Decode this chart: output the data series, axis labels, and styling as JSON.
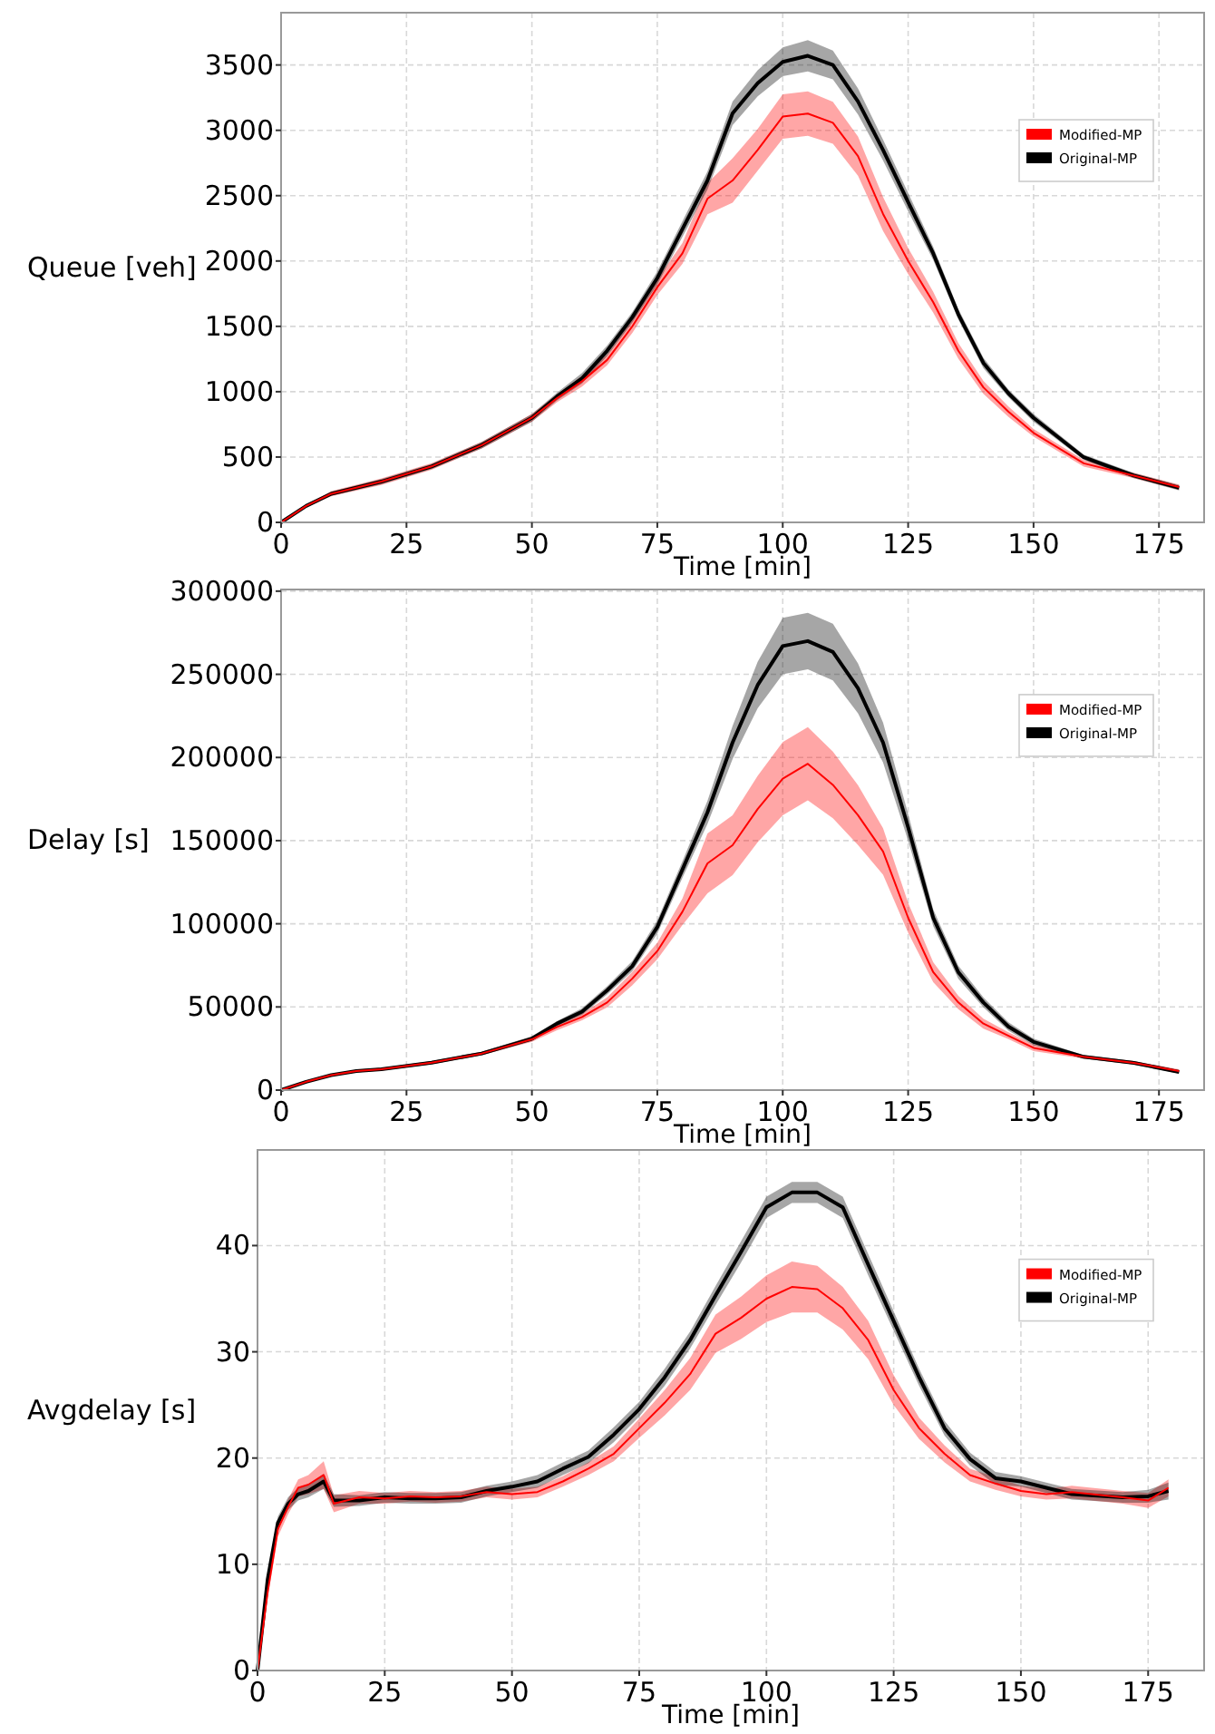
{
  "chart_data": [
    {
      "type": "line",
      "ylabel": "Queue [veh]",
      "xlabel": "Time [min]",
      "xlim": [
        0,
        184
      ],
      "ylim": [
        0,
        3900
      ],
      "xticks": [
        0,
        25,
        50,
        75,
        100,
        125,
        150,
        175
      ],
      "yticks": [
        0,
        500,
        1000,
        1500,
        2000,
        2500,
        3000,
        3500
      ],
      "grid": true,
      "legend": "right",
      "x": [
        0,
        5,
        10,
        20,
        30,
        40,
        50,
        55,
        60,
        65,
        70,
        75,
        80,
        85,
        90,
        95,
        100,
        105,
        110,
        115,
        120,
        125,
        130,
        135,
        140,
        145,
        150,
        160,
        170,
        179
      ],
      "series": [
        {
          "name": "Modified-MP",
          "color": "#ff0000",
          "values": [
            0,
            126,
            219,
            312,
            428,
            591,
            800,
            950,
            1080,
            1243,
            1499,
            1800,
            2058,
            2477,
            2616,
            2850,
            3105,
            3128,
            3058,
            2802,
            2360,
            2000,
            1685,
            1313,
            1033,
            847,
            685,
            452,
            358,
            270
          ],
          "lower": [
            0,
            116,
            199,
            287,
            403,
            566,
            770,
            920,
            1040,
            1203,
            1449,
            1740,
            1978,
            2357,
            2446,
            2690,
            2935,
            2958,
            2898,
            2652,
            2230,
            1900,
            1605,
            1253,
            983,
            807,
            655,
            427,
            338,
            250
          ],
          "upper": [
            0,
            136,
            239,
            337,
            453,
            616,
            830,
            980,
            1120,
            1283,
            1549,
            1860,
            2138,
            2597,
            2786,
            3010,
            3275,
            3298,
            3218,
            2952,
            2490,
            2100,
            1765,
            1373,
            1083,
            887,
            715,
            477,
            378,
            290
          ]
        },
        {
          "name": "Original-MP",
          "color": "#000000",
          "values": [
            0,
            126,
            219,
            312,
            428,
            591,
            800,
            963,
            1103,
            1313,
            1569,
            1870,
            2244,
            2616,
            3130,
            3360,
            3524,
            3570,
            3500,
            3221,
            2849,
            2450,
            2058,
            1592,
            1220,
            987,
            800,
            498,
            358,
            265
          ],
          "lower": [
            0,
            116,
            204,
            292,
            408,
            566,
            770,
            933,
            1063,
            1273,
            1529,
            1820,
            2184,
            2546,
            3040,
            3260,
            3414,
            3450,
            3390,
            3121,
            2769,
            2380,
            2008,
            1552,
            1180,
            957,
            770,
            478,
            338,
            245
          ],
          "upper": [
            0,
            136,
            234,
            332,
            448,
            616,
            830,
            993,
            1143,
            1353,
            1609,
            1920,
            2304,
            2686,
            3220,
            3460,
            3634,
            3690,
            3610,
            3321,
            2929,
            2520,
            2108,
            1632,
            1260,
            1017,
            830,
            518,
            378,
            285
          ]
        }
      ]
    },
    {
      "type": "line",
      "ylabel": "Delay [s]",
      "xlabel": "Time [min]",
      "xlim": [
        0,
        184
      ],
      "ylim": [
        0,
        301000
      ],
      "xticks": [
        0,
        25,
        50,
        75,
        100,
        125,
        150,
        175
      ],
      "yticks": [
        0,
        50000,
        100000,
        150000,
        200000,
        250000,
        300000
      ],
      "grid": true,
      "legend": "right",
      "x": [
        0,
        5,
        10,
        15,
        20,
        30,
        40,
        50,
        55,
        60,
        65,
        70,
        75,
        80,
        85,
        90,
        95,
        100,
        105,
        110,
        115,
        120,
        125,
        130,
        135,
        140,
        145,
        150,
        160,
        170,
        179
      ],
      "series": [
        {
          "name": "Modified-MP",
          "color": "#ff0000",
          "values": [
            0,
            5000,
            9000,
            11500,
            12500,
            16500,
            22000,
            30500,
            38000,
            44000,
            52700,
            67000,
            83600,
            107200,
            136300,
            147200,
            169000,
            187200,
            196200,
            183500,
            165300,
            143500,
            103600,
            70900,
            52700,
            40000,
            32700,
            25400,
            20000,
            16400,
            11500
          ],
          "lower": [
            0,
            4500,
            8500,
            10700,
            11700,
            15500,
            21000,
            29000,
            36000,
            42000,
            49700,
            63000,
            78600,
            99200,
            118300,
            129200,
            149000,
            165200,
            174200,
            163500,
            147300,
            129500,
            94600,
            64900,
            48700,
            37000,
            30700,
            23400,
            19000,
            15400,
            10500
          ],
          "upper": [
            0,
            5500,
            9500,
            12300,
            13300,
            17500,
            23000,
            32000,
            40000,
            46000,
            55700,
            71000,
            88600,
            115200,
            154300,
            165200,
            189000,
            209200,
            218200,
            203500,
            183300,
            157500,
            112600,
            76900,
            56700,
            43000,
            34700,
            27400,
            21000,
            17400,
            12500
          ]
        },
        {
          "name": "Original-MP",
          "color": "#000000",
          "values": [
            0,
            5000,
            9000,
            11500,
            12500,
            16500,
            22000,
            30900,
            40000,
            47200,
            60000,
            74500,
            98100,
            132600,
            167000,
            209000,
            243500,
            267000,
            270000,
            263400,
            241600,
            209000,
            158000,
            103600,
            70900,
            52700,
            38200,
            29000,
            20000,
            16400,
            10900
          ],
          "lower": [
            0,
            4500,
            8500,
            10700,
            11700,
            15500,
            21000,
            29400,
            38500,
            45200,
            57500,
            71500,
            94100,
            127600,
            160000,
            199000,
            229500,
            250000,
            253000,
            246400,
            226600,
            197000,
            150000,
            98600,
            66900,
            49700,
            35700,
            27000,
            19000,
            15400,
            9900
          ],
          "upper": [
            0,
            5500,
            9500,
            12300,
            13300,
            17500,
            23000,
            32400,
            41500,
            49200,
            62500,
            77500,
            102100,
            137600,
            174000,
            219000,
            257500,
            284000,
            287000,
            280400,
            256600,
            221000,
            166000,
            108600,
            74900,
            55700,
            40700,
            31000,
            21000,
            17400,
            11900
          ]
        }
      ]
    },
    {
      "type": "line",
      "ylabel": "Avgdelay [s]",
      "xlabel": "Time [min]",
      "xlim": [
        0,
        186
      ],
      "ylim": [
        0,
        49
      ],
      "xticks": [
        0,
        25,
        50,
        75,
        100,
        125,
        150,
        175
      ],
      "yticks": [
        0,
        10,
        20,
        30,
        40
      ],
      "grid": true,
      "legend": "right",
      "x": [
        0,
        2,
        4,
        6,
        8,
        10,
        13,
        15,
        20,
        25,
        30,
        35,
        40,
        45,
        50,
        55,
        60,
        65,
        70,
        75,
        80,
        85,
        90,
        95,
        100,
        105,
        110,
        115,
        120,
        125,
        130,
        135,
        140,
        145,
        150,
        155,
        160,
        170,
        175,
        179
      ],
      "series": [
        {
          "name": "Modified-MP",
          "color": "#ff0000",
          "values": [
            0,
            7.4,
            13.3,
            15.4,
            17.2,
            17.5,
            18.4,
            15.7,
            16.3,
            16.2,
            16.4,
            16.3,
            16.4,
            16.8,
            16.6,
            16.8,
            17.8,
            19.0,
            20.4,
            22.8,
            25.2,
            27.9,
            31.7,
            33.2,
            35.0,
            36.1,
            35.9,
            34.1,
            31.1,
            26.4,
            22.8,
            20.4,
            18.4,
            17.6,
            16.9,
            16.6,
            16.8,
            16.3,
            16.0,
            17.2
          ],
          "lower": [
            0,
            6.8,
            12.6,
            14.7,
            16.4,
            16.6,
            17.1,
            14.9,
            15.7,
            15.7,
            15.9,
            15.8,
            15.9,
            16.3,
            16.1,
            16.3,
            17.3,
            18.4,
            19.7,
            21.9,
            24.0,
            26.4,
            29.9,
            31.2,
            32.8,
            33.7,
            33.7,
            32.1,
            29.3,
            25.0,
            21.8,
            19.6,
            17.8,
            17.0,
            16.4,
            16.1,
            16.2,
            15.7,
            15.3,
            16.4
          ],
          "upper": [
            0,
            8.0,
            14.0,
            16.1,
            18.0,
            18.4,
            19.7,
            16.5,
            16.9,
            16.7,
            16.9,
            16.8,
            16.9,
            17.3,
            17.1,
            17.3,
            18.3,
            19.6,
            21.1,
            23.7,
            26.4,
            29.4,
            33.5,
            35.2,
            37.2,
            38.5,
            38.1,
            36.1,
            32.9,
            27.8,
            23.8,
            21.2,
            19.0,
            18.2,
            17.4,
            17.1,
            17.4,
            16.9,
            16.7,
            18.0
          ]
        },
        {
          "name": "Original-MP",
          "color": "#000000",
          "values": [
            0,
            8.6,
            13.9,
            15.7,
            16.6,
            16.9,
            17.8,
            16.0,
            16.0,
            16.3,
            16.2,
            16.2,
            16.3,
            16.9,
            17.3,
            17.8,
            19.0,
            20.1,
            22.2,
            24.6,
            27.6,
            31.1,
            35.3,
            39.4,
            43.6,
            45.0,
            45.0,
            43.6,
            38.2,
            32.9,
            27.6,
            22.8,
            19.9,
            18.1,
            17.8,
            17.2,
            16.6,
            16.3,
            16.4,
            16.9
          ],
          "lower": [
            0,
            8.1,
            13.3,
            15.1,
            16.0,
            16.3,
            17.1,
            15.4,
            15.5,
            15.8,
            15.7,
            15.7,
            15.8,
            16.4,
            16.8,
            17.2,
            18.4,
            19.5,
            21.5,
            23.9,
            26.8,
            30.3,
            34.4,
            38.4,
            42.6,
            44.0,
            44.0,
            42.6,
            37.2,
            32.0,
            26.8,
            22.1,
            19.3,
            17.5,
            17.3,
            16.7,
            16.1,
            15.8,
            15.8,
            16.1
          ],
          "upper": [
            0,
            9.1,
            14.5,
            16.3,
            17.2,
            17.5,
            18.5,
            16.6,
            16.5,
            16.8,
            16.7,
            16.7,
            16.8,
            17.4,
            17.8,
            18.4,
            19.6,
            20.7,
            22.9,
            25.3,
            28.4,
            31.9,
            36.2,
            40.4,
            44.6,
            46.0,
            46.0,
            44.6,
            39.2,
            33.8,
            28.4,
            23.5,
            20.5,
            18.7,
            18.3,
            17.7,
            17.1,
            16.8,
            17.0,
            17.7
          ]
        }
      ]
    }
  ]
}
